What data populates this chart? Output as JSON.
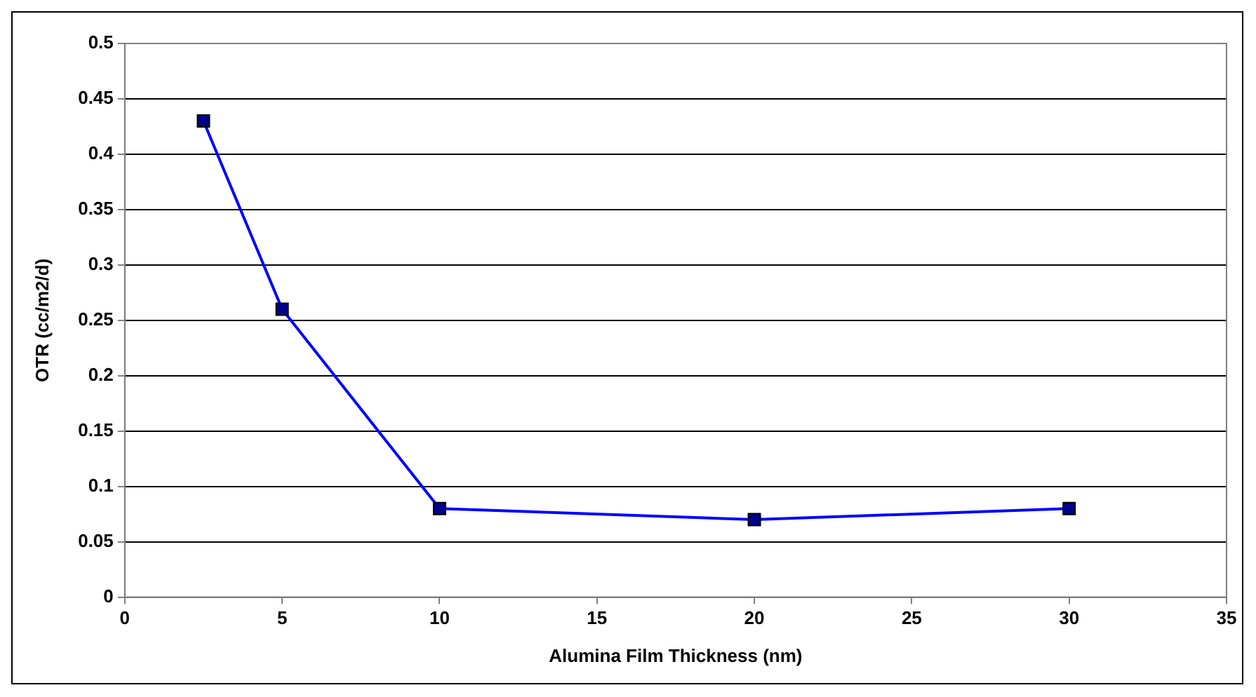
{
  "chart_data": {
    "type": "line",
    "xlabel": "Alumina Film Thickness (nm)",
    "ylabel": "OTR (cc/m2/d)",
    "x": [
      2.5,
      5,
      10,
      20,
      30
    ],
    "series": [
      {
        "color": "#0000ff",
        "values": [
          0.43,
          0.26,
          0.08,
          0.07,
          0.08
        ]
      }
    ],
    "xlim": [
      0,
      35
    ],
    "xticks": [
      0,
      5,
      10,
      15,
      20,
      25,
      30,
      35
    ],
    "ylim": [
      0,
      0.5
    ],
    "yticks": [
      0,
      0.05,
      0.1,
      0.15,
      0.2,
      0.25,
      0.3,
      0.35,
      0.4,
      0.45,
      0.5
    ],
    "grid": "y",
    "legend": false,
    "marker": "square",
    "line_style": "solid"
  }
}
